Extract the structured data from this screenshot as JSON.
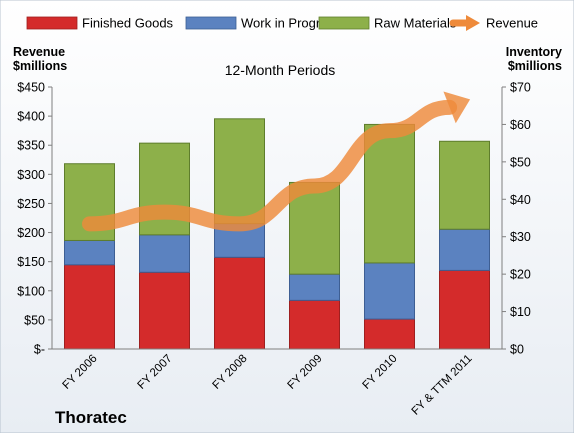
{
  "chart_data": {
    "type": "bar",
    "subtype": "stacked-bar-with-line",
    "title": "12-Month Periods",
    "company": "Thoratec",
    "ylabel_left": [
      "Revenue",
      "$millions"
    ],
    "ylabel_right": [
      "Inventory",
      "$millions"
    ],
    "categories": [
      "FY 2006",
      "FY 2007",
      "FY 2008",
      "FY 2009",
      "FY 2010",
      "FY & TTM 2011"
    ],
    "y_left": {
      "min": 0,
      "max": 450,
      "step": 50,
      "tick_labels": [
        "$-",
        "$50",
        "$100",
        "$150",
        "$200",
        "$250",
        "$300",
        "$350",
        "$400",
        "$450"
      ]
    },
    "y_right": {
      "min": 0,
      "max": 70,
      "step": 10,
      "tick_labels": [
        "$0",
        "$10",
        "$20",
        "$30",
        "$40",
        "$50",
        "$60",
        "$70"
      ]
    },
    "series": [
      {
        "name": "Finished Goods",
        "kind": "bar",
        "axis": "right",
        "color": "#d42b2b",
        "values": [
          22.5,
          20.5,
          24.5,
          13,
          8,
          21
        ]
      },
      {
        "name": "Work in Progress",
        "kind": "bar",
        "axis": "right",
        "color": "#5b82c0",
        "values": [
          6.5,
          10,
          9,
          7,
          15,
          11
        ]
      },
      {
        "name": "Raw Materials",
        "kind": "bar",
        "axis": "right",
        "color": "#8db04a",
        "values": [
          20.5,
          24.5,
          28,
          24.5,
          37,
          23.5
        ]
      },
      {
        "name": "Revenue",
        "kind": "line",
        "axis": "left",
        "color": "#ee8a3a",
        "values": [
          215,
          235,
          215,
          280,
          375,
          425
        ]
      }
    ],
    "legend_position": "top",
    "grid": false
  }
}
